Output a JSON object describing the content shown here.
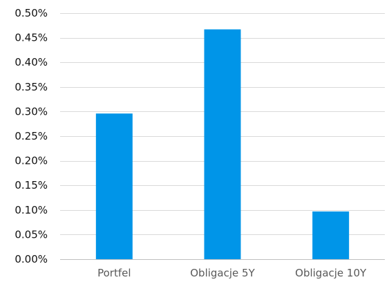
{
  "chart_data": {
    "type": "bar",
    "title": "",
    "xlabel": "",
    "ylabel": "",
    "categories": [
      "Portfel",
      "Obligacje 5Y",
      "Obligacje 10Y"
    ],
    "values": [
      0.00296,
      0.00467,
      0.00097
    ],
    "ylim": [
      0,
      0.005
    ],
    "y_ticks": [
      0,
      0.0005,
      0.001,
      0.0015,
      0.002,
      0.0025,
      0.003,
      0.0035,
      0.004,
      0.0045,
      0.005
    ],
    "y_tick_labels": [
      "0.00%",
      "0.05%",
      "0.10%",
      "0.15%",
      "0.20%",
      "0.25%",
      "0.30%",
      "0.35%",
      "0.40%",
      "0.45%",
      "0.50%"
    ],
    "grid": true,
    "legend": "none",
    "bar_color": "#0095e8"
  }
}
